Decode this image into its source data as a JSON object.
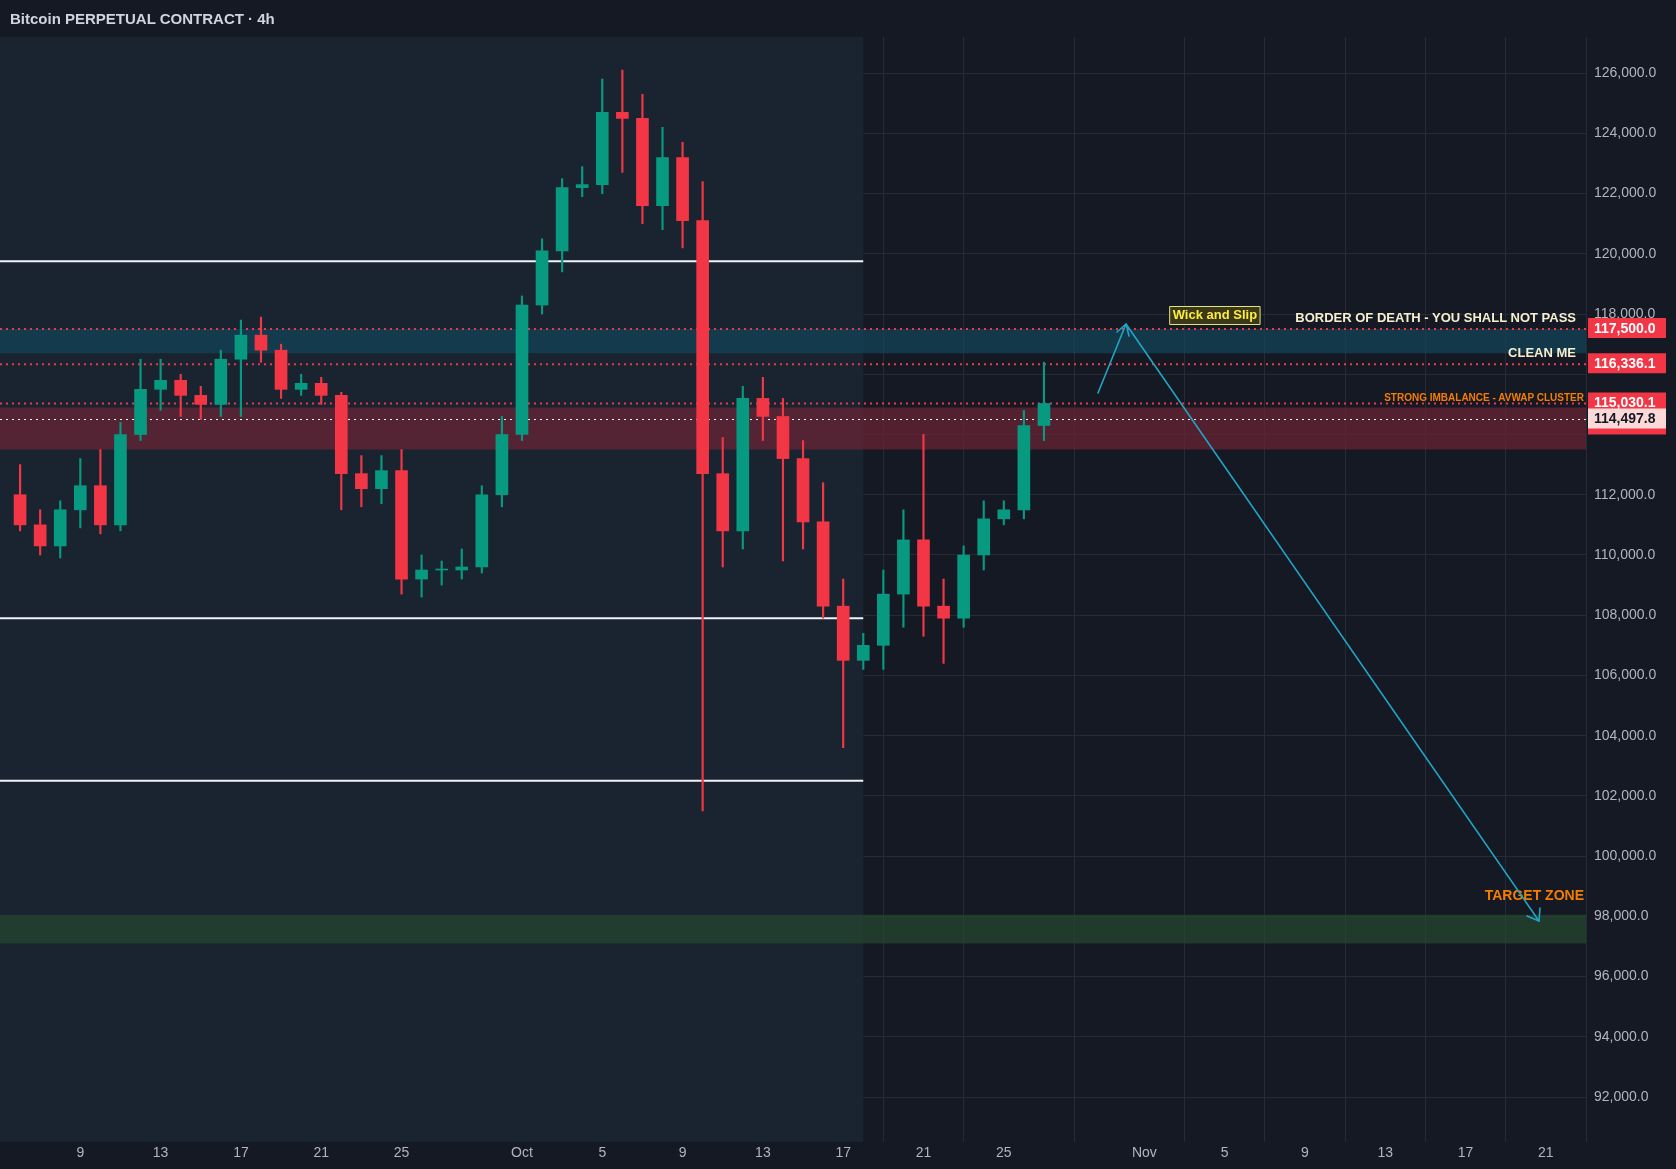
{
  "chart_data": {
    "type": "candlestick",
    "title": "Bitcoin PERPETUAL CONTRACT · 4h",
    "x": [
      "--09-06",
      "--09-07",
      "--09-08",
      "--09-09",
      "--09-10",
      "--09-11",
      "--09-12",
      "--09-13",
      "--09-14",
      "--09-15",
      "--09-16",
      "--09-17",
      "--09-18",
      "--09-19",
      "--09-20",
      "--09-21",
      "--09-22",
      "--09-23",
      "--09-24",
      "--09-25",
      "--09-26",
      "--09-27",
      "--09-28",
      "--09-29",
      "--09-30",
      "--10-01",
      "--10-02",
      "--10-03",
      "--10-04",
      "--10-05",
      "--10-06",
      "--10-07",
      "--10-08",
      "--10-09",
      "--10-10",
      "--10-11",
      "--10-12",
      "--10-13",
      "--10-14",
      "--10-15",
      "--10-16",
      "--10-17",
      "--10-18",
      "--10-19",
      "--10-20",
      "--10-21",
      "--10-22",
      "--10-23",
      "--10-24",
      "--10-25",
      "--10-26",
      "--10-27"
    ],
    "ohlc": [
      [
        112000,
        113000,
        110800,
        111000
      ],
      [
        111000,
        111500,
        110000,
        110300
      ],
      [
        110300,
        111800,
        109900,
        111500
      ],
      [
        111500,
        113200,
        110900,
        112300
      ],
      [
        112300,
        113500,
        110700,
        111000
      ],
      [
        111000,
        114400,
        110800,
        114000
      ],
      [
        114000,
        116500,
        113800,
        115500
      ],
      [
        115500,
        116500,
        114800,
        115800
      ],
      [
        115800,
        116000,
        114600,
        115300
      ],
      [
        115300,
        115600,
        114500,
        115000
      ],
      [
        115000,
        116800,
        114600,
        116500
      ],
      [
        116500,
        117800,
        114600,
        117300
      ],
      [
        117300,
        117900,
        116400,
        116800
      ],
      [
        116800,
        117000,
        115200,
        115500
      ],
      [
        115500,
        116000,
        115300,
        115700
      ],
      [
        115700,
        115900,
        115000,
        115300
      ],
      [
        115300,
        115400,
        111500,
        112700
      ],
      [
        112700,
        113300,
        111600,
        112200
      ],
      [
        112200,
        113300,
        111700,
        112800
      ],
      [
        112800,
        113500,
        108700,
        109200
      ],
      [
        109200,
        110000,
        108600,
        109500
      ],
      [
        109500,
        109800,
        109000,
        109500
      ],
      [
        109500,
        110200,
        109200,
        109600
      ],
      [
        109600,
        112300,
        109400,
        112000
      ],
      [
        112000,
        114600,
        111600,
        114000
      ],
      [
        114000,
        118600,
        113800,
        118300
      ],
      [
        118300,
        120500,
        118000,
        120100
      ],
      [
        120100,
        122500,
        119400,
        122200
      ],
      [
        122200,
        122900,
        121900,
        122300
      ],
      [
        122300,
        125800,
        122000,
        124700
      ],
      [
        124700,
        126100,
        122700,
        124500
      ],
      [
        124500,
        125300,
        121000,
        121600
      ],
      [
        121600,
        124200,
        120800,
        123200
      ],
      [
        123200,
        123700,
        120200,
        121100
      ],
      [
        121100,
        122400,
        101500,
        112700
      ],
      [
        112700,
        113900,
        109600,
        110800
      ],
      [
        110800,
        115600,
        110200,
        115200
      ],
      [
        115200,
        115900,
        113800,
        114600
      ],
      [
        114600,
        115200,
        109800,
        113200
      ],
      [
        113200,
        113800,
        110200,
        111100
      ],
      [
        111100,
        112400,
        107900,
        108300
      ],
      [
        108300,
        109200,
        103600,
        106500
      ],
      [
        106500,
        107400,
        106200,
        107000
      ],
      [
        107000,
        109500,
        106200,
        108700
      ],
      [
        108700,
        111500,
        107600,
        110500
      ],
      [
        110500,
        114000,
        107300,
        108300
      ],
      [
        108300,
        109200,
        106400,
        107900
      ],
      [
        107900,
        110300,
        107600,
        110000
      ],
      [
        110000,
        111800,
        109500,
        111200
      ],
      [
        111200,
        111800,
        111000,
        111500
      ],
      [
        111500,
        114800,
        111200,
        114300
      ],
      [
        114300,
        116400,
        113800,
        115030.1
      ]
    ],
    "series": [
      {
        "type": "line",
        "color": "#f0f3fa",
        "x": [
          "--09-05",
          "--10-18"
        ],
        "values": [
          119750,
          119750
        ]
      },
      {
        "type": "line",
        "color": "#f0f3fa",
        "x": [
          "--09-05",
          "--10-18"
        ],
        "values": [
          107900,
          107900
        ]
      },
      {
        "type": "line",
        "color": "#f0f3fa",
        "x": [
          "--09-05",
          "--10-18"
        ],
        "values": [
          102500,
          102500
        ]
      }
    ],
    "xlim": [
      "--09-05",
      "--11-23"
    ],
    "xticks": [
      {
        "value": "--09-09",
        "label": "9"
      },
      {
        "value": "--09-13",
        "label": "13"
      },
      {
        "value": "--09-17",
        "label": "17"
      },
      {
        "value": "--09-21",
        "label": "21"
      },
      {
        "value": "--09-25",
        "label": "25"
      },
      {
        "value": "--10-01",
        "label": "Oct"
      },
      {
        "value": "--10-05",
        "label": "5"
      },
      {
        "value": "--10-09",
        "label": "9"
      },
      {
        "value": "--10-13",
        "label": "13"
      },
      {
        "value": "--10-17",
        "label": "17"
      },
      {
        "value": "--10-21",
        "label": "21"
      },
      {
        "value": "--10-25",
        "label": "25"
      },
      {
        "value": "--11-01",
        "label": "Nov"
      },
      {
        "value": "--11-05",
        "label": "5"
      },
      {
        "value": "--11-09",
        "label": "9"
      },
      {
        "value": "--11-13",
        "label": "13"
      },
      {
        "value": "--11-17",
        "label": "17"
      },
      {
        "value": "--11-21",
        "label": "21"
      }
    ],
    "ylim": [
      90500,
      127200
    ],
    "yticks": [
      {
        "value": 92000,
        "label": "92,000.0"
      },
      {
        "value": 94000,
        "label": "94,000.0"
      },
      {
        "value": 96000,
        "label": "96,000.0"
      },
      {
        "value": 98000,
        "label": "98,000.0"
      },
      {
        "value": 100000,
        "label": "100,000.0"
      },
      {
        "value": 102000,
        "label": "102,000.0"
      },
      {
        "value": 104000,
        "label": "104,000.0"
      },
      {
        "value": 106000,
        "label": "106,000.0"
      },
      {
        "value": 108000,
        "label": "108,000.0"
      },
      {
        "value": 110000,
        "label": "110,000.0"
      },
      {
        "value": 112000,
        "label": "112,000.0"
      },
      {
        "value": 114000,
        "label": null
      },
      {
        "value": 116000,
        "label": null
      },
      {
        "value": 118000,
        "label": "118,000.0"
      },
      {
        "value": 120000,
        "label": "120,000.0"
      },
      {
        "value": 122000,
        "label": "122,000.0"
      },
      {
        "value": 124000,
        "label": "124,000.0"
      },
      {
        "value": 126000,
        "label": "126,000.0"
      }
    ],
    "grid": true,
    "legend": false,
    "bands": [
      {
        "axis": "x",
        "from": "--09-05",
        "to": "--10-18",
        "color": "#1a2430"
      },
      {
        "axis": "y",
        "from": 116700,
        "to": 117500,
        "color": "#12465a"
      },
      {
        "axis": "y",
        "from": 113500,
        "to": 114900,
        "label": "STRONG IMBALANCE - AVWAP CLUSTER",
        "color": "#6e2436"
      },
      {
        "axis": "y",
        "from": 97100,
        "to": 98050,
        "label": "TARGET ZONE",
        "color": "#25482f"
      }
    ],
    "ref_lines": [
      {
        "axis": "y",
        "value": 117500,
        "label": "117,500.0",
        "color": "#f23645",
        "line_style": "dotted"
      },
      {
        "axis": "y",
        "value": 116336.1,
        "label": "116,336.1",
        "color": "#f23645",
        "line_style": "dotted"
      },
      {
        "axis": "y",
        "value": 115030.1,
        "label": "115,030.1\n03:18:01",
        "color": "#f23645",
        "line_style": "dotted"
      },
      {
        "axis": "y",
        "value": 114497.8,
        "label": "114,497.8",
        "color": "#ffffff",
        "line_style": "dotted"
      }
    ],
    "annotations": [
      "Wick and Slip",
      "BORDER OF DEATH - YOU SHALL NOT PASS",
      "CLEAN ME"
    ]
  }
}
